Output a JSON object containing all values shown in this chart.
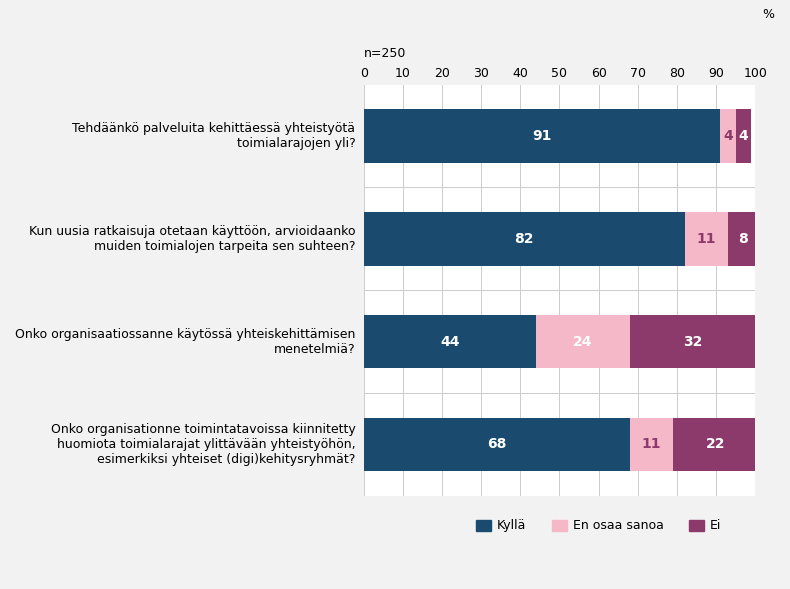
{
  "categories": [
    "Tehdäänkö palveluita kehittäessä yhteistyötä\ntoimialarajojen yli?",
    "Kun uusia ratkaisuja otetaan käyttöön, arvioidaanko\nmuiden toimialojen tarpeita sen suhteen?",
    "Onko organisaatiossanne käytössä yhteiskehittämisen\nmenetelmiä?",
    "Onko organisationne toimintatavoissa kiinnitetty\nhuomiota toimialarajat ylittävään yhteistyöhön,\nesimerkiksi yhteiset (digi)kehitysryhmät?"
  ],
  "kylla": [
    91,
    82,
    44,
    68
  ],
  "en_osaa_sanoa": [
    4,
    11,
    24,
    11
  ],
  "ei": [
    4,
    8,
    32,
    22
  ],
  "color_kylla": "#1a4b6e",
  "color_en_osaa_sanoa": "#f4b8c8",
  "color_ei": "#8b3a6b",
  "n_label": "n=250",
  "percent_label": "%",
  "legend_kylla": "Kyllä",
  "legend_en_osaa_sanoa": "En osaa sanoa",
  "legend_ei": "Ei",
  "xlim": [
    0,
    100
  ],
  "xticks": [
    0,
    10,
    20,
    30,
    40,
    50,
    60,
    70,
    80,
    90,
    100
  ],
  "background_color": "#f2f2f2",
  "plot_bg_color": "#ffffff",
  "bar_height": 0.52,
  "label_fontsize": 10,
  "tick_fontsize": 9,
  "category_fontsize": 9
}
